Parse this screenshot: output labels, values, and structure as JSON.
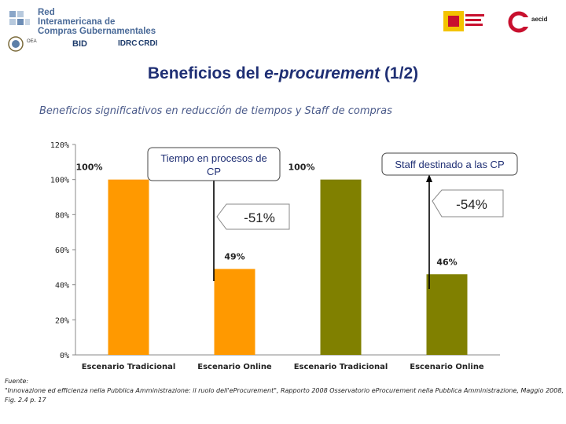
{
  "header": {
    "org_name_lines": [
      "Red",
      "Interamericana de",
      "Compras Gubernamentales"
    ],
    "partners": [
      "OEA",
      "BID",
      "IDRC",
      "CRDI"
    ]
  },
  "title": {
    "main": "Beneficios del ",
    "italic": "e-procurement",
    "suffix": " (1/2)"
  },
  "subtitle": "Beneficios significativos en reducción de tiempos y Staff de compras",
  "callouts": {
    "box1": "Tiempo en procesos de CP",
    "box2": "Staff destinado a las CP",
    "pct1": "-51%",
    "pct2": "-54%"
  },
  "chart_data": {
    "type": "bar",
    "categories": [
      "Escenario Tradicional",
      "Escenario Online",
      "Escenario Tradicional",
      "Escenario Online"
    ],
    "values": [
      100,
      49,
      100,
      46
    ],
    "data_labels": [
      "100%",
      "49%",
      "100%",
      "46%"
    ],
    "bar_colors": [
      "#FF9900",
      "#FF9900",
      "#808000",
      "#808000"
    ],
    "ylim": [
      0,
      120
    ],
    "yticks": [
      "0%",
      "20%",
      "40%",
      "60%",
      "80%",
      "100%",
      "120%"
    ],
    "grid": false
  },
  "footer": {
    "label": "Fuente:",
    "source": "\"Innovazione ed efficienza nella Pubblica Amministrazione: il ruolo dell'eProcurement\", Rapporto 2008 Osservatorio eProcurement nella Pubblica Amministrazione, Maggio 2008, Fig. 2.4 p. 17"
  }
}
